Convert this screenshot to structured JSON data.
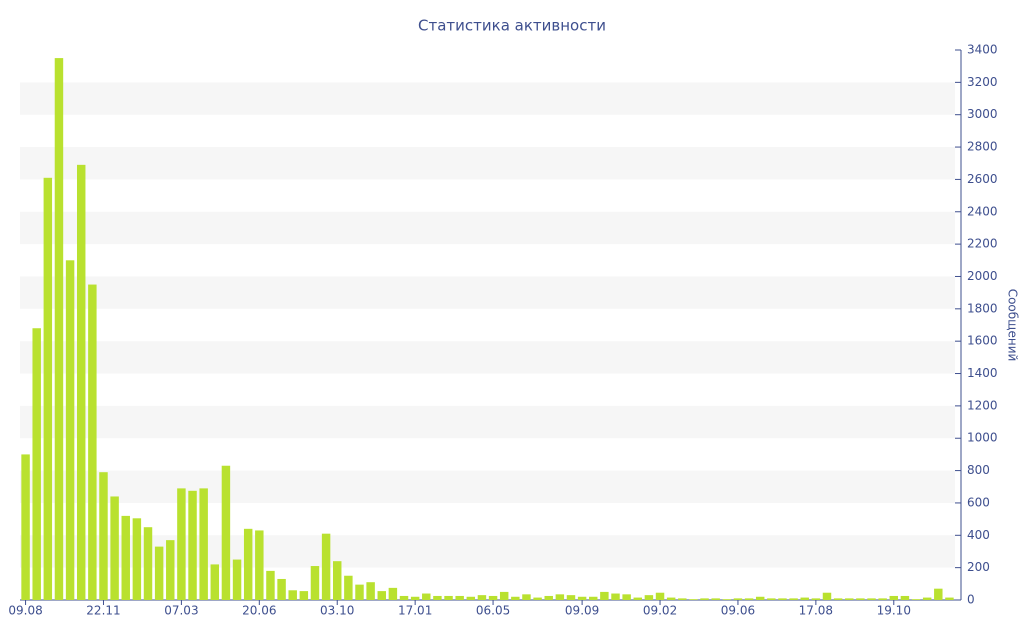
{
  "chart_data": {
    "type": "bar",
    "title": "Статистика активности",
    "y_axis_label": "Сообщений",
    "categories": [
      "09.08",
      null,
      null,
      null,
      null,
      null,
      null,
      "22.11",
      null,
      null,
      null,
      null,
      null,
      null,
      "07.03",
      null,
      null,
      null,
      null,
      null,
      null,
      "20.06",
      null,
      null,
      null,
      null,
      null,
      null,
      "03.10",
      null,
      null,
      null,
      null,
      null,
      null,
      "17.01",
      null,
      null,
      null,
      null,
      null,
      null,
      "06.05",
      null,
      null,
      null,
      null,
      null,
      null,
      null,
      "09.09",
      null,
      null,
      null,
      null,
      null,
      null,
      "09.02",
      null,
      null,
      null,
      null,
      null,
      null,
      "09.06",
      null,
      null,
      null,
      null,
      null,
      null,
      "17.08",
      null,
      null,
      null,
      null,
      null,
      null,
      "19.10",
      null,
      null,
      null,
      null,
      null
    ],
    "values": [
      900,
      1680,
      2610,
      3350,
      2100,
      2690,
      1950,
      790,
      640,
      520,
      505,
      450,
      330,
      370,
      690,
      675,
      690,
      220,
      830,
      250,
      440,
      430,
      180,
      130,
      60,
      55,
      210,
      410,
      240,
      150,
      95,
      110,
      55,
      75,
      25,
      20,
      40,
      25,
      25,
      25,
      20,
      30,
      25,
      50,
      20,
      35,
      15,
      25,
      35,
      30,
      20,
      20,
      50,
      40,
      35,
      15,
      30,
      45,
      15,
      10,
      5,
      10,
      10,
      5,
      10,
      10,
      20,
      10,
      10,
      10,
      15,
      10,
      45,
      10,
      10,
      10,
      10,
      10,
      25,
      25,
      5,
      15,
      70,
      15
    ],
    "color": "#b9e12f",
    "ylim": [
      0,
      3400
    ],
    "yticks": [
      0,
      200,
      400,
      600,
      800,
      1000,
      1200,
      1400,
      1600,
      1800,
      2000,
      2200,
      2400,
      2600,
      2800,
      3000,
      3200,
      3400
    ],
    "y_axis_side": "right",
    "grid": true
  }
}
